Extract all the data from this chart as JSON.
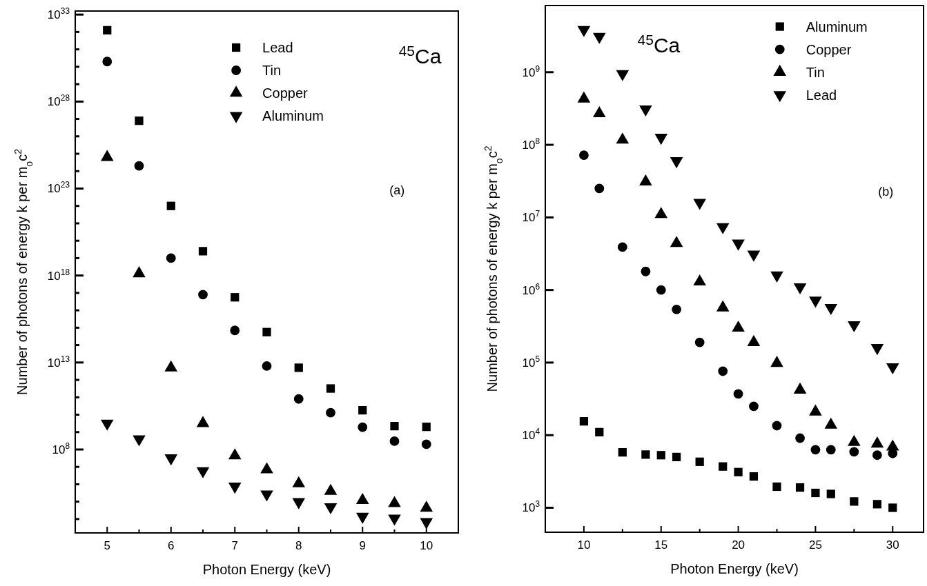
{
  "chart_data": [
    {
      "type": "scatter",
      "xlabel": "Photon Energy (keV)",
      "ylabel": "Number of photons of energy k per m$_{o}$c$^{2}$",
      "annotations": [
        "$^{45}$Ca",
        "(a)"
      ],
      "log": "y",
      "legend": "top",
      "grid": false,
      "xlim": [
        4.5,
        10.5
      ],
      "xticks": [
        5,
        {
          "value": 5.5,
          "label": null
        },
        6,
        {
          "value": 6.5,
          "label": null
        },
        7,
        {
          "value": 7.5,
          "label": null
        },
        8,
        {
          "value": 8.5,
          "label": null
        },
        9,
        {
          "value": 9.5,
          "label": null
        },
        10
      ],
      "ylim": [
        1600.0,
        1.6e+33
      ],
      "yticks": [
        {
          "value": 10000.0,
          "label": null
        },
        {
          "value": 100000.0,
          "label": null
        },
        {
          "value": 1000000.0,
          "label": null
        },
        {
          "value": 10000000.0,
          "label": null
        },
        {
          "value": 100000000.0,
          "label": "10$^{8}$"
        },
        {
          "value": 1000000000.0,
          "label": null
        },
        {
          "value": 10000000000.0,
          "label": null
        },
        {
          "value": 100000000000.0,
          "label": null
        },
        {
          "value": 1000000000000.0,
          "label": null
        },
        {
          "value": 10000000000000.0,
          "label": "10$^{13}$"
        },
        {
          "value": 100000000000000.0,
          "label": null
        },
        {
          "value": 1000000000000000.0,
          "label": null
        },
        {
          "value": 1e+16,
          "label": null
        },
        {
          "value": 1e+17,
          "label": null
        },
        {
          "value": 1e+18,
          "label": "10$^{18}$"
        },
        {
          "value": 1e+19,
          "label": null
        },
        {
          "value": 1e+20,
          "label": null
        },
        {
          "value": 1e+21,
          "label": null
        },
        {
          "value": 1e+22,
          "label": null
        },
        {
          "value": 1e+23,
          "label": "10$^{23}$"
        },
        {
          "value": 1e+24,
          "label": null
        },
        {
          "value": 1e+25,
          "label": null
        },
        {
          "value": 1e+26,
          "label": null
        },
        {
          "value": 1e+27,
          "label": null
        },
        {
          "value": 1e+28,
          "label": "10$^{28}$"
        },
        {
          "value": 1e+29,
          "label": null
        },
        {
          "value": 1e+30,
          "label": null
        },
        {
          "value": 1e+31,
          "label": null
        },
        {
          "value": 1e+32,
          "label": null
        },
        {
          "value": 1e+33,
          "label": "10$^{33}$"
        }
      ],
      "x": [
        5,
        5.5,
        6,
        6.5,
        7,
        7.5,
        8,
        8.5,
        9,
        9.5,
        10
      ],
      "series": [
        {
          "name": "Lead",
          "color": "#000000",
          "marker": "square",
          "values": [
            1.26e+32,
            7.9e+26,
            1e+22,
            2.5e+19,
            5.6e+16,
            560000000000000.0,
            5000000000000.0,
            320000000000.0,
            18000000000.0,
            2200000000.0,
            2000000000.0
          ]
        },
        {
          "name": "Tin",
          "color": "#000000",
          "marker": "circle",
          "values": [
            2e+30,
            2e+24,
            1e+19,
            8e+16,
            700000000000000.0,
            6300000000000.0,
            80000000000.0,
            13000000000.0,
            1900000000.0,
            300000000.0,
            200000000.0
          ]
        },
        {
          "name": "Copper",
          "color": "#000000",
          "marker": "triangle",
          "values": [
            6.3e+24,
            1.3e+18,
            5000000000000.0,
            3200000000.0,
            44000000.0,
            7000000.0,
            1100000.0,
            400000.0,
            120000.0,
            80000.0,
            43000.0
          ]
        },
        {
          "name": "Aluminum",
          "color": "#000000",
          "marker": "triangle-down",
          "values": [
            3200000000.0,
            400000000.0,
            32000000.0,
            5900000.0,
            760000.0,
            270000.0,
            98000.0,
            50000.0,
            14000.0,
            11000.0,
            6900.0
          ]
        }
      ]
    },
    {
      "type": "scatter",
      "xlabel": "Photon Energy (keV)",
      "ylabel": "Number of photons of energy k per m$_{o}$c$^{2}$",
      "annotations": [
        "$^{45}$Ca",
        "(b)"
      ],
      "log": "y",
      "legend": "top right",
      "grid": false,
      "xlim": [
        7.5,
        32
      ],
      "xticks": [
        10,
        {
          "value": 12.5,
          "label": null
        },
        15,
        {
          "value": 17.5,
          "label": null
        },
        20,
        {
          "value": 22.5,
          "label": null
        },
        25,
        {
          "value": 27.5,
          "label": null
        },
        30
      ],
      "ylim": [
        460,
        8300000000.0
      ],
      "yticks": [
        {
          "value": 1000.0,
          "label": "10$^{3}$"
        },
        {
          "value": 10000.0,
          "label": "10$^{4}$"
        },
        {
          "value": 100000.0,
          "label": "10$^{5}$"
        },
        {
          "value": 1000000.0,
          "label": "10$^{6}$"
        },
        {
          "value": 10000000.0,
          "label": "10$^{7}$"
        },
        {
          "value": 100000000.0,
          "label": "10$^{8}$"
        },
        {
          "value": 1000000000.0,
          "label": "10$^{9}$"
        }
      ],
      "x": [
        10,
        11,
        12.5,
        14,
        15,
        16,
        17.5,
        19,
        20,
        21,
        22.5,
        24,
        25,
        26,
        27.5,
        29,
        30
      ],
      "series": [
        {
          "name": "Aluminum",
          "color": "#000000",
          "marker": "square",
          "values": [
            15500.0,
            11000.0,
            5800.0,
            5400.0,
            5300.0,
            5000.0,
            4300.0,
            3700.0,
            3100.0,
            2700.0,
            1950.0,
            1900.0,
            1600.0,
            1550.0,
            1220.0,
            1120.0,
            1000.0
          ]
        },
        {
          "name": "Copper",
          "color": "#000000",
          "marker": "circle",
          "values": [
            72000000.0,
            25000000.0,
            3900000.0,
            1800000.0,
            1000000.0,
            540000.0,
            190000.0,
            76000.0,
            37000.0,
            25000.0,
            13500.0,
            9100.0,
            6300.0,
            6300.0,
            5900.0,
            5300.0,
            5600.0
          ]
        },
        {
          "name": "Tin",
          "color": "#000000",
          "marker": "triangle",
          "values": [
            430000000.0,
            270000000.0,
            117000000.0,
            31000000.0,
            11000000.0,
            4400000.0,
            1300000.0,
            570000.0,
            300000.0,
            190000.0,
            98000.0,
            42000.0,
            21000.0,
            13800.0,
            8000.0,
            7600.0,
            6900.0
          ]
        },
        {
          "name": "Lead",
          "color": "#000000",
          "marker": "triangle-down",
          "values": [
            3850000000.0,
            3100000000.0,
            950000000.0,
            310000000.0,
            126000000.0,
            60000000.0,
            16000000.0,
            7400000.0,
            4400000.0,
            3100000.0,
            1600000.0,
            1100000.0,
            720000.0,
            570000.0,
            330000.0,
            160000.0,
            87000.0
          ]
        }
      ]
    }
  ]
}
